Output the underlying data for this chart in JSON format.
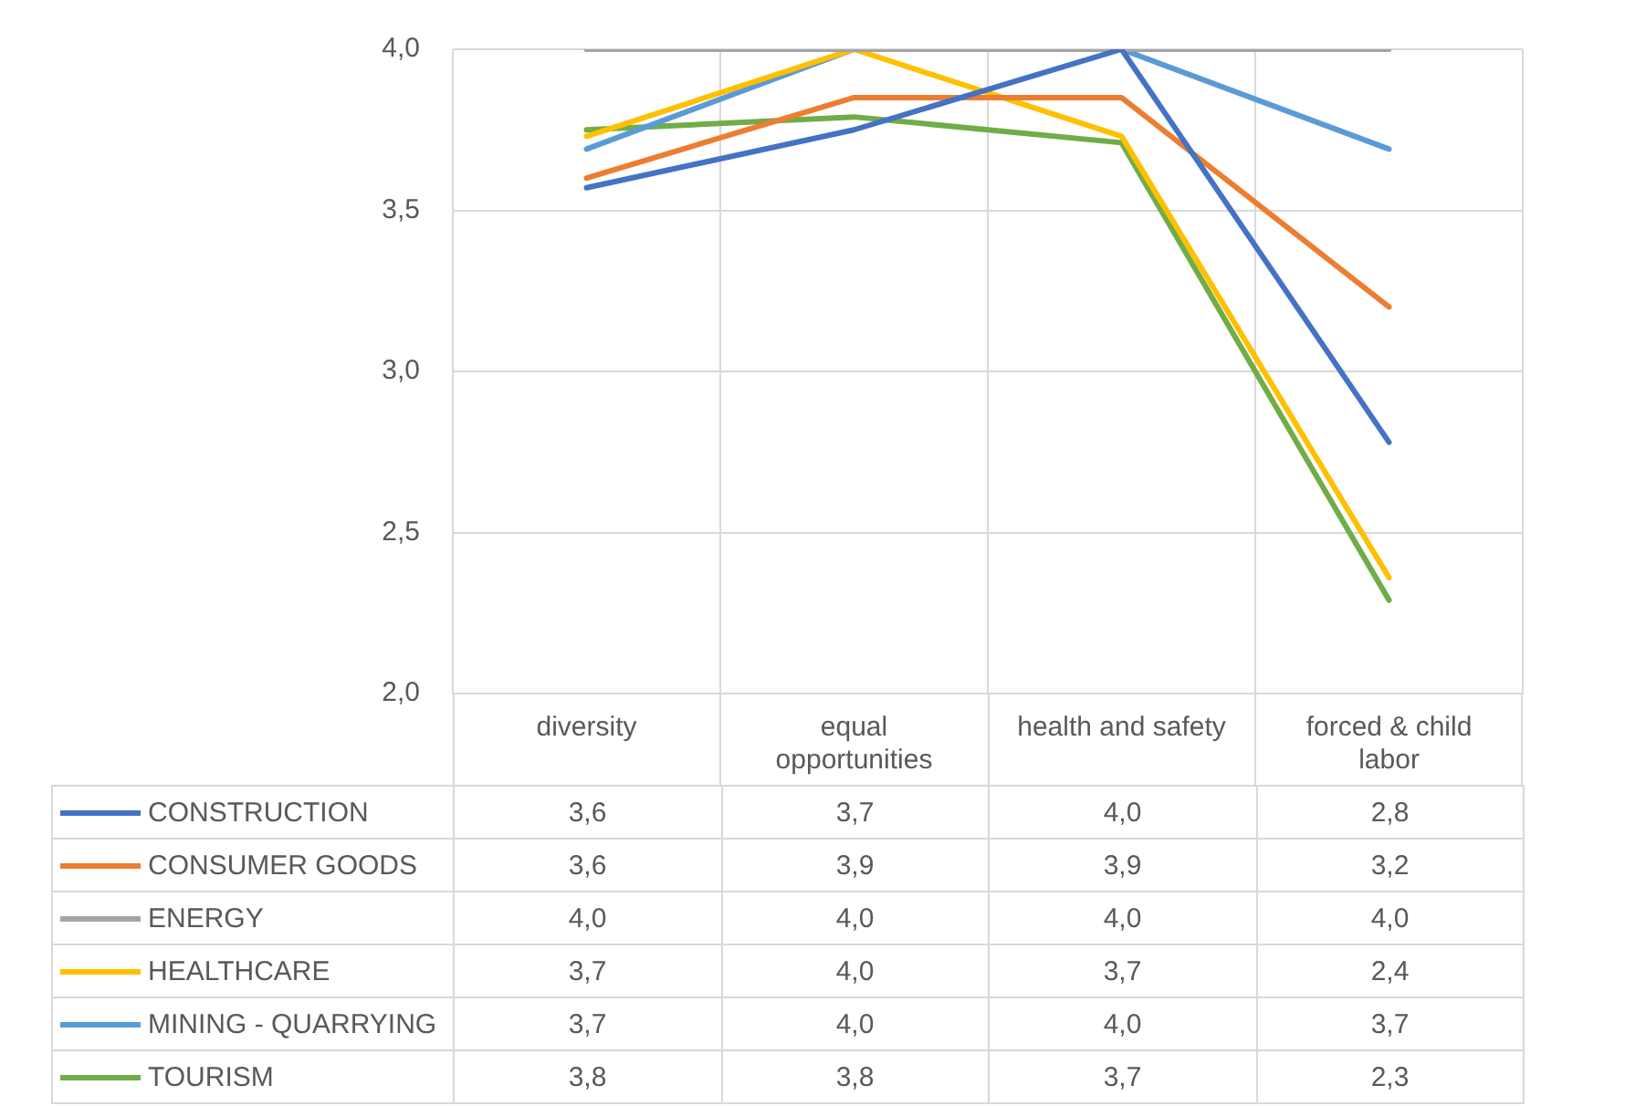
{
  "chart_data": {
    "type": "line",
    "categories": [
      "diversity",
      "equal opportunities",
      "health and safety",
      "forced & child labor"
    ],
    "ylim": [
      2,
      4
    ],
    "yticks": [
      {
        "value": 2,
        "label": "2,0"
      },
      {
        "value": 2.5,
        "label": "2,5"
      },
      {
        "value": 3,
        "label": "3,0"
      },
      {
        "value": 3.5,
        "label": "3,5"
      },
      {
        "value": 4,
        "label": "4,0"
      }
    ],
    "grid": true,
    "legend": "bottom",
    "marker": "none",
    "series": [
      {
        "name": "CONSTRUCTION",
        "color": "#4472c4",
        "values": [
          3.57,
          3.75,
          4.0,
          2.78
        ],
        "value_labels": [
          "3,6",
          "3,7",
          "4,0",
          "2,8"
        ]
      },
      {
        "name": "CONSUMER GOODS",
        "color": "#ed7d31",
        "values": [
          3.6,
          3.85,
          3.85,
          3.2
        ],
        "value_labels": [
          "3,6",
          "3,9",
          "3,9",
          "3,2"
        ]
      },
      {
        "name": "ENERGY",
        "color": "#a5a5a5",
        "values": [
          4.0,
          4.0,
          4.0,
          4.0
        ],
        "value_labels": [
          "4,0",
          "4,0",
          "4,0",
          "4,0"
        ]
      },
      {
        "name": "HEALTHCARE",
        "color": "#ffc000",
        "values": [
          3.73,
          4.0,
          3.73,
          2.36
        ],
        "value_labels": [
          "3,7",
          "4,0",
          "3,7",
          "2,4"
        ]
      },
      {
        "name": "MINING - QUARRYING",
        "color": "#5b9bd5",
        "values": [
          3.69,
          4.0,
          4.0,
          3.69
        ],
        "value_labels": [
          "3,7",
          "4,0",
          "4,0",
          "3,7"
        ]
      },
      {
        "name": "TOURISM",
        "color": "#70ad47",
        "values": [
          3.75,
          3.79,
          3.71,
          2.29
        ],
        "value_labels": [
          "3,8",
          "3,8",
          "3,7",
          "2,3"
        ]
      }
    ]
  }
}
